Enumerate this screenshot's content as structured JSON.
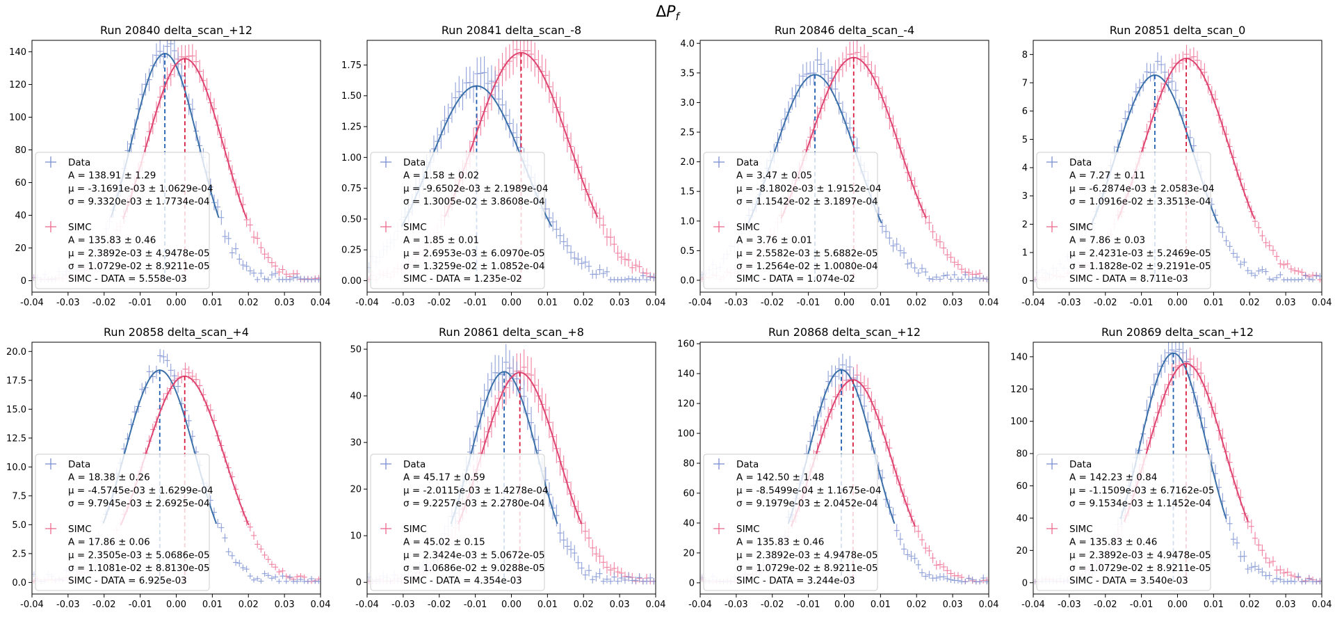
{
  "figure": {
    "suptitle_prefix": "Δ",
    "suptitle_main": "P",
    "suptitle_sub": "f"
  },
  "colors": {
    "data_points": "#7b8fd1",
    "data_fit": "#3a6fa8",
    "data_mean": "#1f5fb0",
    "simc_points": "#ee6a8f",
    "simc_fit": "#de4470",
    "simc_mean": "#d81b3c"
  },
  "chart_data": [
    {
      "type": "scatter",
      "title": "Run 20840 delta_scan_+12",
      "xlim": [
        -0.04,
        0.04
      ],
      "ylim": [
        -7,
        147
      ],
      "yticks": [
        "0",
        "20",
        "40",
        "60",
        "80",
        "100",
        "120",
        "140"
      ],
      "ytick_values": [
        0,
        20,
        40,
        60,
        80,
        100,
        120,
        140
      ],
      "xticks": [
        "-0.04",
        "-0.03",
        "-0.02",
        "-0.01",
        "0.00",
        "0.01",
        "0.02",
        "0.03",
        "0.04"
      ],
      "xtick_values": [
        -0.04,
        -0.03,
        -0.02,
        -0.01,
        0.0,
        0.01,
        0.02,
        0.03,
        0.04
      ],
      "series": [
        {
          "name": "Data",
          "A": 138.91,
          "mu": -0.0031691,
          "sigma": 0.009332,
          "tail": 0.04,
          "lines": [
            "A = 138.91 ± 1.29",
            "μ = -3.1691e-03 ± 1.0629e-04",
            "σ = 9.3320e-03 ± 1.7734e-04"
          ]
        },
        {
          "name": "SIMC",
          "A": 135.83,
          "mu": 0.0023892,
          "sigma": 0.010729,
          "tail": 0.02,
          "lines": [
            "A = 135.83 ± 0.46",
            "μ = 2.3892e-03 ± 4.9478e-05",
            "σ = 1.0729e-02 ± 8.9211e-05"
          ]
        }
      ],
      "difference": "SIMC - DATA = 5.558e-03"
    },
    {
      "type": "scatter",
      "title": "Run 20841 delta_scan_-8",
      "xlim": [
        -0.04,
        0.04
      ],
      "ylim": [
        -0.093,
        1.95
      ],
      "yticks": [
        "0.00",
        "0.25",
        "0.50",
        "0.75",
        "1.00",
        "1.25",
        "1.50",
        "1.75"
      ],
      "ytick_values": [
        0,
        0.25,
        0.5,
        0.75,
        1.0,
        1.25,
        1.5,
        1.75
      ],
      "xticks": [
        "-0.04",
        "-0.03",
        "-0.02",
        "-0.01",
        "0.00",
        "0.01",
        "0.02",
        "0.03",
        "0.04"
      ],
      "xtick_values": [
        -0.04,
        -0.03,
        -0.02,
        -0.01,
        0.0,
        0.01,
        0.02,
        0.03,
        0.04
      ],
      "series": [
        {
          "name": "Data",
          "A": 1.58,
          "mu": -0.0096502,
          "sigma": 0.013005,
          "tail": 0.08,
          "lines": [
            "A = 1.58 ± 0.02",
            "μ = -9.6502e-03 ± 2.1989e-04",
            "σ = 1.3005e-02 ± 3.8608e-04"
          ]
        },
        {
          "name": "SIMC",
          "A": 1.85,
          "mu": 0.0026953,
          "sigma": 0.013259,
          "tail": 0.02,
          "lines": [
            "A = 1.85 ± 0.01",
            "μ = 2.6953e-03 ± 6.0970e-05",
            "σ = 1.3259e-02 ± 1.0852e-04"
          ]
        }
      ],
      "difference": "SIMC - DATA = 1.235e-02"
    },
    {
      "type": "scatter",
      "title": "Run 20846 delta_scan_-4",
      "xlim": [
        -0.04,
        0.04
      ],
      "ylim": [
        -0.2,
        4.05
      ],
      "yticks": [
        "0.0",
        "0.5",
        "1.0",
        "1.5",
        "2.0",
        "2.5",
        "3.0",
        "3.5",
        "4.0"
      ],
      "ytick_values": [
        0,
        0.5,
        1.0,
        1.5,
        2.0,
        2.5,
        3.0,
        3.5,
        4.0
      ],
      "xticks": [
        "-0.04",
        "-0.03",
        "-0.02",
        "-0.01",
        "0.00",
        "0.01",
        "0.02",
        "0.03",
        "0.04"
      ],
      "xtick_values": [
        -0.04,
        -0.03,
        -0.02,
        -0.01,
        0.0,
        0.01,
        0.02,
        0.03,
        0.04
      ],
      "series": [
        {
          "name": "Data",
          "A": 3.47,
          "mu": -0.0081802,
          "sigma": 0.011542,
          "tail": 0.06,
          "lines": [
            "A = 3.47 ± 0.05",
            "μ = -8.1802e-03 ± 1.9152e-04",
            "σ = 1.1542e-02 ± 3.1897e-04"
          ]
        },
        {
          "name": "SIMC",
          "A": 3.76,
          "mu": 0.0025582,
          "sigma": 0.012564,
          "tail": 0.02,
          "lines": [
            "A = 3.76 ± 0.01",
            "μ = 2.5582e-03 ± 5.6882e-05",
            "σ = 1.2564e-02 ± 1.0080e-04"
          ]
        }
      ],
      "difference": "SIMC - DATA = 1.074e-02"
    },
    {
      "type": "scatter",
      "title": "Run 20851 delta_scan_0",
      "xlim": [
        -0.04,
        0.04
      ],
      "ylim": [
        -0.4,
        8.5
      ],
      "yticks": [
        "0",
        "1",
        "2",
        "3",
        "4",
        "5",
        "6",
        "7",
        "8"
      ],
      "ytick_values": [
        0,
        1,
        2,
        3,
        4,
        5,
        6,
        7,
        8
      ],
      "xticks": [
        "-0.04",
        "-0.03",
        "-0.02",
        "-0.01",
        "0.00",
        "0.01",
        "0.02",
        "0.03",
        "0.04"
      ],
      "xtick_values": [
        -0.04,
        -0.03,
        -0.02,
        -0.01,
        0.0,
        0.01,
        0.02,
        0.03,
        0.04
      ],
      "series": [
        {
          "name": "Data",
          "A": 7.27,
          "mu": -0.0062874,
          "sigma": 0.010916,
          "tail": 0.06,
          "lines": [
            "A = 7.27 ± 0.11",
            "μ = -6.2874e-03 ± 2.0583e-04",
            "σ = 1.0916e-02 ± 3.3513e-04"
          ]
        },
        {
          "name": "SIMC",
          "A": 7.86,
          "mu": 0.0024231,
          "sigma": 0.011828,
          "tail": 0.02,
          "lines": [
            "A = 7.86 ± 0.03",
            "μ = 2.4231e-03 ± 5.2469e-05",
            "σ = 1.1828e-02 ± 9.2191e-05"
          ]
        }
      ],
      "difference": "SIMC - DATA = 8.711e-03"
    },
    {
      "type": "scatter",
      "title": "Run 20858 delta_scan_+4",
      "xlim": [
        -0.04,
        0.04
      ],
      "ylim": [
        -1,
        20.8
      ],
      "yticks": [
        "0.0",
        "2.5",
        "5.0",
        "7.5",
        "10.0",
        "12.5",
        "15.0",
        "17.5",
        "20.0"
      ],
      "ytick_values": [
        0,
        2.5,
        5.0,
        7.5,
        10.0,
        12.5,
        15.0,
        17.5,
        20.0
      ],
      "xticks": [
        "-0.04",
        "-0.03",
        "-0.02",
        "-0.01",
        "0.00",
        "0.01",
        "0.02",
        "0.03",
        "0.04"
      ],
      "xtick_values": [
        -0.04,
        -0.03,
        -0.02,
        -0.01,
        0.0,
        0.01,
        0.02,
        0.03,
        0.04
      ],
      "series": [
        {
          "name": "Data",
          "A": 18.38,
          "mu": -0.0045745,
          "sigma": 0.0097945,
          "tail": 0.06,
          "lines": [
            "A = 18.38 ± 0.26",
            "μ = -4.5745e-03 ± 1.6299e-04",
            "σ = 9.7945e-03 ± 2.6925e-04"
          ]
        },
        {
          "name": "SIMC",
          "A": 17.86,
          "mu": 0.0023505,
          "sigma": 0.011081,
          "tail": 0.02,
          "lines": [
            "A = 17.86 ± 0.06",
            "μ = 2.3505e-03 ± 5.0686e-05",
            "σ = 1.1081e-02 ± 8.8130e-05"
          ]
        }
      ],
      "difference": "SIMC - DATA = 6.925e-03"
    },
    {
      "type": "scatter",
      "title": "Run 20861 delta_scan_+8",
      "xlim": [
        -0.04,
        0.04
      ],
      "ylim": [
        -2.5,
        51.5
      ],
      "yticks": [
        "0",
        "10",
        "20",
        "30",
        "40",
        "50"
      ],
      "ytick_values": [
        0,
        10,
        20,
        30,
        40,
        50
      ],
      "xticks": [
        "-0.04",
        "-0.03",
        "-0.02",
        "-0.01",
        "0.00",
        "0.01",
        "0.02",
        "0.03",
        "0.04"
      ],
      "xtick_values": [
        -0.04,
        -0.03,
        -0.02,
        -0.01,
        0.0,
        0.01,
        0.02,
        0.03,
        0.04
      ],
      "series": [
        {
          "name": "Data",
          "A": 45.17,
          "mu": -0.0020115,
          "sigma": 0.0092257,
          "tail": 0.04,
          "lines": [
            "A = 45.17 ± 0.59",
            "μ = -2.0115e-03 ± 1.4278e-04",
            "σ = 9.2257e-03 ± 2.2780e-04"
          ]
        },
        {
          "name": "SIMC",
          "A": 45.02,
          "mu": 0.0023424,
          "sigma": 0.010686,
          "tail": 0.02,
          "lines": [
            "A = 45.02 ± 0.15",
            "μ = 2.3424e-03 ± 5.0672e-05",
            "σ = 1.0686e-02 ± 9.0288e-05"
          ]
        }
      ],
      "difference": "SIMC - DATA = 4.354e-03"
    },
    {
      "type": "scatter",
      "title": "Run 20868 delta_scan_+12",
      "xlim": [
        -0.04,
        0.04
      ],
      "ylim": [
        -7.5,
        161
      ],
      "yticks": [
        "0",
        "20",
        "40",
        "60",
        "80",
        "100",
        "120",
        "140",
        "160"
      ],
      "ytick_values": [
        0,
        20,
        40,
        60,
        80,
        100,
        120,
        140,
        160
      ],
      "xticks": [
        "-0.04",
        "-0.03",
        "-0.02",
        "-0.01",
        "0.00",
        "0.01",
        "0.02",
        "0.03",
        "0.04"
      ],
      "xtick_values": [
        -0.04,
        -0.03,
        -0.02,
        -0.01,
        0.0,
        0.01,
        0.02,
        0.03,
        0.04
      ],
      "series": [
        {
          "name": "Data",
          "A": 142.5,
          "mu": -0.00085499,
          "sigma": 0.0091979,
          "tail": 0.03,
          "lines": [
            "A = 142.50 ± 1.48",
            "μ = -8.5499e-04 ± 1.1675e-04",
            "σ = 9.1979e-03 ± 2.0452e-04"
          ]
        },
        {
          "name": "SIMC",
          "A": 135.83,
          "mu": 0.0023892,
          "sigma": 0.010729,
          "tail": 0.02,
          "lines": [
            "A = 135.83 ± 0.46",
            "μ = 2.3892e-03 ± 4.9478e-05",
            "σ = 1.0729e-02 ± 8.9211e-05"
          ]
        }
      ],
      "difference": "SIMC - DATA = 3.244e-03"
    },
    {
      "type": "scatter",
      "title": "Run 20869 delta_scan_+12",
      "xlim": [
        -0.04,
        0.04
      ],
      "ylim": [
        -7,
        149
      ],
      "yticks": [
        "0",
        "20",
        "40",
        "60",
        "80",
        "100",
        "120",
        "140"
      ],
      "ytick_values": [
        0,
        20,
        40,
        60,
        80,
        100,
        120,
        140
      ],
      "xticks": [
        "-0.04",
        "-0.03",
        "-0.02",
        "-0.01",
        "0.00",
        "0.01",
        "0.02",
        "0.03",
        "0.04"
      ],
      "xtick_values": [
        -0.04,
        -0.03,
        -0.02,
        -0.01,
        0.0,
        0.01,
        0.02,
        0.03,
        0.04
      ],
      "series": [
        {
          "name": "Data",
          "A": 142.23,
          "mu": -0.0011509,
          "sigma": 0.0091534,
          "tail": 0.03,
          "lines": [
            "A = 142.23 ± 0.84",
            "μ = -1.1509e-03 ± 6.7162e-05",
            "σ = 9.1534e-03 ± 1.1452e-04"
          ]
        },
        {
          "name": "SIMC",
          "A": 135.83,
          "mu": 0.0023892,
          "sigma": 0.010729,
          "tail": 0.02,
          "lines": [
            "A = 135.83 ± 0.46",
            "μ = 2.3892e-03 ± 4.9478e-05",
            "σ = 1.0729e-02 ± 8.9211e-05"
          ]
        }
      ],
      "difference": "SIMC - DATA = 3.540e-03"
    }
  ]
}
